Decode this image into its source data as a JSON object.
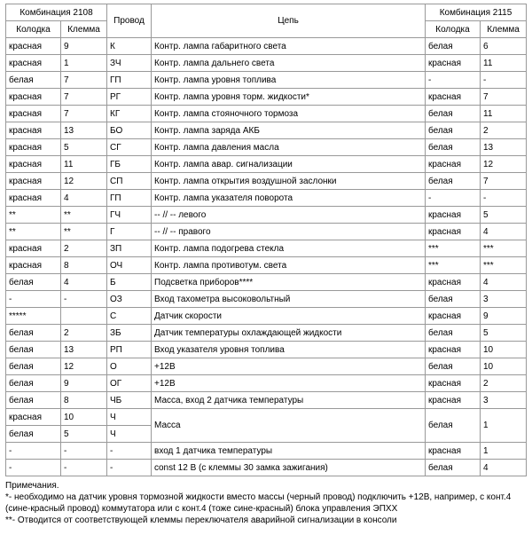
{
  "header": {
    "komb2108": "Комбинация 2108",
    "provod": "Провод",
    "cep": "Цепь",
    "komb2115": "Комбинация 2115",
    "kolodka": "Колодка",
    "klemma": "Клемма"
  },
  "rows": [
    {
      "k1": "красная",
      "t1": "9",
      "p": "К",
      "c": "Контр. лампа габаритного света",
      "k2": "белая",
      "t2": "6"
    },
    {
      "k1": "красная",
      "t1": "1",
      "p": "ЗЧ",
      "c": "Контр. лампа дальнего света",
      "k2": "красная",
      "t2": "11"
    },
    {
      "k1": "белая",
      "t1": "7",
      "p": "ГП",
      "c": "Контр. лампа уровня топлива",
      "k2": "-",
      "t2": "-"
    },
    {
      "k1": "красная",
      "t1": "7",
      "p": "РГ",
      "c": "Контр. лампа уровня торм. жидкости*",
      "k2": "красная",
      "t2": "7"
    },
    {
      "k1": "красная",
      "t1": "7",
      "p": "КГ",
      "c": "Контр. лампа стояночного тормоза",
      "k2": "белая",
      "t2": "11"
    },
    {
      "k1": "красная",
      "t1": "13",
      "p": "БО",
      "c": "Контр. лампа заряда АКБ",
      "k2": "белая",
      "t2": "2"
    },
    {
      "k1": "красная",
      "t1": "5",
      "p": "СГ",
      "c": "Контр. лампа давления масла",
      "k2": "белая",
      "t2": "13"
    },
    {
      "k1": "красная",
      "t1": "11",
      "p": "ГБ",
      "c": "Контр. лампа авар. сигнализации",
      "k2": "красная",
      "t2": "12"
    },
    {
      "k1": "красная",
      "t1": "12",
      "p": "СП",
      "c": "Контр. лампа открытия воздушной заслонки",
      "k2": "белая",
      "t2": "7"
    },
    {
      "k1": "красная",
      "t1": "4",
      "p": "ГП",
      "c": "Контр. лампа указателя поворота",
      "k2": "-",
      "t2": "-"
    },
    {
      "k1": "**",
      "t1": "**",
      "p": "ГЧ",
      "c": "-- // -- левого",
      "k2": "красная",
      "t2": "5"
    },
    {
      "k1": "**",
      "t1": "**",
      "p": "Г",
      "c": "-- // -- правого",
      "k2": "красная",
      "t2": "4"
    },
    {
      "k1": "красная",
      "t1": "2",
      "p": "ЗП",
      "c": "Контр. лампа подогрева стекла",
      "k2": "***",
      "t2": "***"
    },
    {
      "k1": "красная",
      "t1": "8",
      "p": "ОЧ",
      "c": "Контр. лампа противотум. света",
      "k2": "***",
      "t2": "***"
    },
    {
      "k1": "белая",
      "t1": "4",
      "p": "Б",
      "c": "Подсветка приборов****",
      "k2": "красная",
      "t2": "4"
    },
    {
      "k1": "-",
      "t1": "-",
      "p": "ОЗ",
      "c": "Вход тахометра высоковольтный",
      "k2": "белая",
      "t2": "3"
    },
    {
      "k1": "*****",
      "t1": "",
      "p": "С",
      "c": "Датчик скорости",
      "k2": "красная",
      "t2": "9"
    },
    {
      "k1": "белая",
      "t1": "2",
      "p": "ЗБ",
      "c": "Датчик температуры охлаждающей жидкости",
      "k2": "белая",
      "t2": "5"
    },
    {
      "k1": "белая",
      "t1": "13",
      "p": "РП",
      "c": "Вход указателя уровня топлива",
      "k2": "красная",
      "t2": "10"
    },
    {
      "k1": "белая",
      "t1": "12",
      "p": "О",
      "c": "+12В",
      "k2": "белая",
      "t2": "10"
    },
    {
      "k1": "белая",
      "t1": "9",
      "p": "ОГ",
      "c": "+12В",
      "k2": "красная",
      "t2": "2"
    },
    {
      "k1": "белая",
      "t1": "8",
      "p": "ЧБ",
      "c": "Масса, вход 2 датчика температуры",
      "k2": "красная",
      "t2": "3"
    },
    {
      "k1": "красная",
      "t1": "10",
      "p": "Ч",
      "c": "",
      "k2": "",
      "t2": "",
      "massa_top": true
    },
    {
      "k1": "белая",
      "t1": "5",
      "p": "Ч",
      "c": "Масса",
      "k2": "белая",
      "t2": "1",
      "massa_bot": true
    },
    {
      "k1": "-",
      "t1": "-",
      "p": "-",
      "c": "вход 1 датчика температуры",
      "k2": "красная",
      "t2": "1"
    },
    {
      "k1": "-",
      "t1": "-",
      "p": "-",
      "c": "const 12 В (с клеммы 30 замка зажигания)",
      "k2": "белая",
      "t2": "4"
    }
  ],
  "notes": {
    "title": "Примечания.",
    "n1": "*- необходимо на датчик уровня тормозной жидкости вместо массы (черный провод) подключить +12В, например, с конт.4 (сине-красный провод) коммутатора или с конт.4 (тоже сине-красный) блока управления ЭПХХ",
    "n2": "**- Отводится от соответствующей клеммы переключателя аварийной сигнализации в консоли"
  }
}
